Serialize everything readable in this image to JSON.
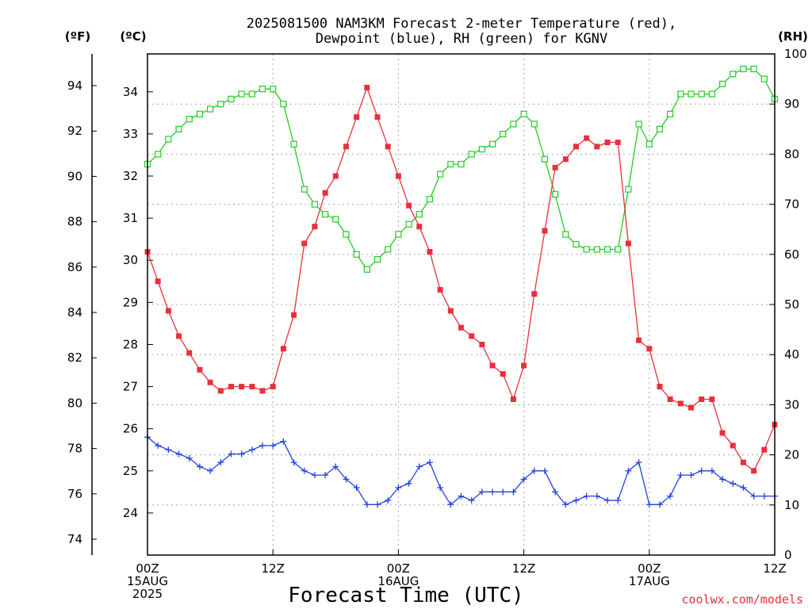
{
  "chart_data": {
    "type": "line",
    "title_line1": "2025081500 NAM3KM Forecast 2-meter Temperature (red),",
    "title_line2": "Dewpoint (blue), RH (green) for KGNV",
    "xlabel": "Forecast Time (UTC)",
    "credit": "coolwx.com/models",
    "axes": {
      "fahrenheit": {
        "label": "(ºF)",
        "ticks": [
          "74",
          "76",
          "78",
          "80",
          "82",
          "84",
          "86",
          "88",
          "90",
          "92",
          "94"
        ],
        "range": [
          73.3,
          95.4
        ]
      },
      "celsius": {
        "label": "(ºC)",
        "ticks": [
          "24",
          "25",
          "26",
          "27",
          "28",
          "29",
          "30",
          "31",
          "32",
          "33",
          "34"
        ],
        "range": [
          23.0,
          34.9
        ]
      },
      "rh": {
        "label": "(RH)",
        "ticks": [
          "0",
          "10",
          "20",
          "30",
          "40",
          "50",
          "60",
          "70",
          "80",
          "90",
          "100"
        ],
        "range": [
          0,
          100
        ]
      }
    },
    "x_ticks": [
      {
        "hour": 0,
        "lines": [
          "00Z",
          "15AUG",
          "2025"
        ]
      },
      {
        "hour": 12,
        "lines": [
          "12Z"
        ]
      },
      {
        "hour": 24,
        "lines": [
          "00Z",
          "16AUG"
        ]
      },
      {
        "hour": 36,
        "lines": [
          "12Z"
        ]
      },
      {
        "hour": 48,
        "lines": [
          "00Z",
          "17AUG"
        ]
      },
      {
        "hour": 60,
        "lines": [
          "12Z"
        ]
      }
    ],
    "x_range_hours": [
      0,
      60
    ],
    "grid": true,
    "series": [
      {
        "name": "2-meter Temperature",
        "unit": "ºC",
        "color": "#e8303c",
        "marker": "filled-square",
        "x": [
          0,
          1,
          2,
          3,
          4,
          5,
          6,
          7,
          8,
          9,
          10,
          11,
          12,
          13,
          14,
          15,
          16,
          17,
          18,
          19,
          20,
          21,
          22,
          23,
          24,
          25,
          26,
          27,
          28,
          29,
          30,
          31,
          32,
          33,
          34,
          35,
          36,
          37,
          38,
          39,
          40,
          41,
          42,
          43,
          44,
          45,
          46,
          47,
          48,
          49,
          50,
          51,
          52,
          53,
          54,
          55,
          56,
          57,
          58,
          59,
          60
        ],
        "values": [
          30.2,
          29.5,
          28.8,
          28.2,
          27.8,
          27.4,
          27.1,
          26.9,
          27.0,
          27.0,
          27.0,
          26.9,
          27.0,
          27.9,
          28.7,
          30.4,
          30.8,
          31.6,
          32.0,
          32.7,
          33.4,
          34.1,
          33.4,
          32.7,
          32.0,
          31.3,
          30.8,
          30.2,
          29.3,
          28.8,
          28.4,
          28.2,
          28.0,
          27.5,
          27.3,
          26.7,
          27.5,
          29.2,
          30.7,
          32.2,
          32.4,
          32.7,
          32.9,
          32.7,
          32.8,
          32.8,
          30.4,
          28.1,
          27.9,
          27.0,
          26.7,
          26.6,
          26.5,
          26.7,
          26.7,
          25.9,
          25.6,
          25.2,
          25.0,
          25.5,
          26.1
        ]
      },
      {
        "name": "Dewpoint",
        "unit": "ºC",
        "color": "#2244dd",
        "marker": "plus",
        "x": [
          0,
          1,
          2,
          3,
          4,
          5,
          6,
          7,
          8,
          9,
          10,
          11,
          12,
          13,
          14,
          15,
          16,
          17,
          18,
          19,
          20,
          21,
          22,
          23,
          24,
          25,
          26,
          27,
          28,
          29,
          30,
          31,
          32,
          33,
          34,
          35,
          36,
          37,
          38,
          39,
          40,
          41,
          42,
          43,
          44,
          45,
          46,
          47,
          48,
          49,
          50,
          51,
          52,
          53,
          54,
          55,
          56,
          57,
          58,
          59,
          60
        ],
        "values": [
          25.8,
          25.6,
          25.5,
          25.4,
          25.3,
          25.1,
          25.0,
          25.2,
          25.4,
          25.4,
          25.5,
          25.6,
          25.6,
          25.7,
          25.2,
          25.0,
          24.9,
          24.9,
          25.1,
          24.8,
          24.6,
          24.2,
          24.2,
          24.3,
          24.6,
          24.7,
          25.1,
          25.2,
          24.6,
          24.2,
          24.4,
          24.3,
          24.5,
          24.5,
          24.5,
          24.5,
          24.8,
          25.0,
          25.0,
          24.5,
          24.2,
          24.3,
          24.4,
          24.4,
          24.3,
          24.3,
          25.0,
          25.2,
          24.2,
          24.2,
          24.4,
          24.9,
          24.9,
          25.0,
          25.0,
          24.8,
          24.7,
          24.6,
          24.4,
          24.4,
          24.4
        ]
      },
      {
        "name": "RH",
        "unit": "%",
        "color": "#22cc22",
        "marker": "open-square",
        "x": [
          0,
          1,
          2,
          3,
          4,
          5,
          6,
          7,
          8,
          9,
          10,
          11,
          12,
          13,
          14,
          15,
          16,
          17,
          18,
          19,
          20,
          21,
          22,
          23,
          24,
          25,
          26,
          27,
          28,
          29,
          30,
          31,
          32,
          33,
          34,
          35,
          36,
          37,
          38,
          39,
          40,
          41,
          42,
          43,
          44,
          45,
          46,
          47,
          48,
          49,
          50,
          51,
          52,
          53,
          54,
          55,
          56,
          57,
          58,
          59,
          60
        ],
        "values": [
          78,
          80,
          83,
          85,
          87,
          88,
          89,
          90,
          91,
          92,
          92,
          93,
          93,
          90,
          82,
          73,
          70,
          68,
          67,
          64,
          60,
          57,
          59,
          61,
          64,
          66,
          68,
          71,
          76,
          78,
          78,
          80,
          81,
          82,
          84,
          86,
          88,
          86,
          79,
          72,
          64,
          62,
          61,
          61,
          61,
          61,
          73,
          86,
          82,
          85,
          88,
          92,
          92,
          92,
          92,
          94,
          96,
          97,
          97,
          95,
          91
        ]
      }
    ]
  }
}
